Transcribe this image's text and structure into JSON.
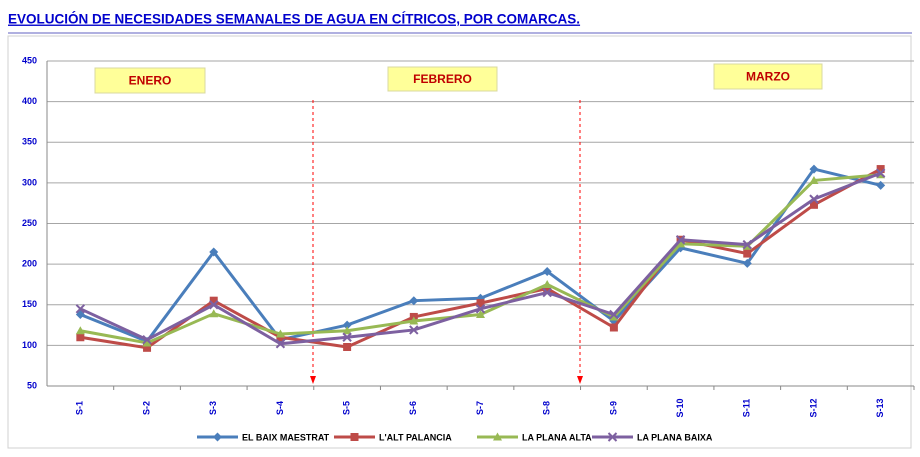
{
  "chart_data": {
    "type": "line",
    "title": "EVOLUCIÓN DE NECESIDADES SEMANALES DE AGUA EN CÍTRICOS, POR COMARCAS.",
    "categories": [
      "S-1",
      "S-2",
      "S-3",
      "S-4",
      "S-5",
      "S-6",
      "S-7",
      "S-8",
      "S-9",
      "S-10",
      "S-11",
      "S-12",
      "S-13"
    ],
    "series": [
      {
        "name": "EL BAIX MAESTRAT",
        "color": "#4a7ebb",
        "marker": "diamond",
        "values": [
          138,
          105,
          215,
          107,
          125,
          155,
          158,
          191,
          130,
          220,
          201,
          317,
          297
        ]
      },
      {
        "name": "L'ALT PALANCIA",
        "color": "#be4b48",
        "marker": "square",
        "values": [
          110,
          97,
          155,
          110,
          98,
          135,
          152,
          170,
          122,
          230,
          213,
          273,
          317
        ]
      },
      {
        "name": "LA PLANA ALTA",
        "color": "#98b954",
        "marker": "triangle",
        "values": [
          118,
          103,
          139,
          114,
          118,
          130,
          138,
          175,
          135,
          225,
          222,
          303,
          310
        ]
      },
      {
        "name": "LA PLANA BAIXA",
        "color": "#7d60a0",
        "marker": "x",
        "values": [
          145,
          107,
          150,
          102,
          110,
          119,
          145,
          165,
          138,
          230,
          224,
          280,
          312
        ]
      }
    ],
    "annotations": [
      "ENERO",
      "FEBRERO",
      "MARZO"
    ],
    "ylim": [
      50,
      450
    ],
    "yticks": [
      50,
      100,
      150,
      200,
      250,
      300,
      350,
      400,
      450
    ],
    "grid": true
  }
}
